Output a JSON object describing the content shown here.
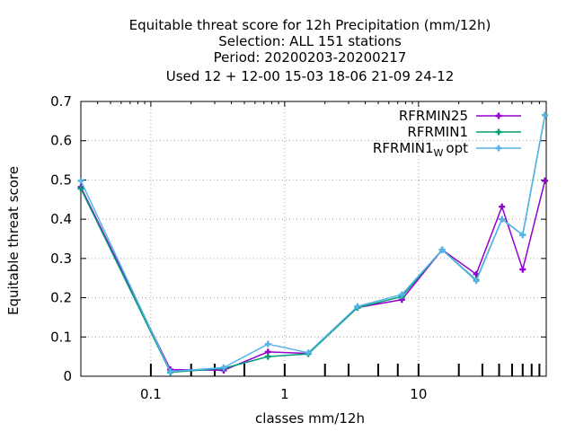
{
  "chart_data": {
    "type": "line",
    "title_lines": [
      "Equitable threat score  for 12h Precipitation (mm/12h)",
      "Selection: ALL    151 stations",
      "Period: 20200203-20200217",
      "Used  12 + 12-00 15-03 18-06 21-09 24-12"
    ],
    "xlabel": "classes mm/12h",
    "ylabel": "Equitable threat score",
    "x_scale": "log",
    "xlim": [
      0.03,
      90
    ],
    "ylim": [
      0,
      0.7
    ],
    "x_ticks": [
      0.1,
      1,
      10
    ],
    "x_tick_labels": [
      "0.1",
      "1",
      "10"
    ],
    "y_ticks": [
      0,
      0.1,
      0.2,
      0.3,
      0.4,
      0.5,
      0.6,
      0.7
    ],
    "y_tick_labels": [
      "0",
      "0.1",
      "0.2",
      "0.3",
      "0.4",
      "0.5",
      "0.6",
      "0.7"
    ],
    "category_marks": [
      0.1,
      0.2,
      0.3,
      0.5,
      1,
      2,
      3,
      5,
      7,
      10,
      20,
      30,
      40,
      50,
      60,
      70,
      80
    ],
    "grid": true,
    "legend_position": "top-right",
    "x": [
      0.03,
      0.14,
      0.35,
      0.75,
      1.5,
      3.5,
      7.5,
      15,
      27,
      42,
      60,
      88
    ],
    "series": [
      {
        "name": "RFRMIN25",
        "color": "#9400d3",
        "values": [
          0.482,
          0.017,
          0.015,
          0.062,
          0.058,
          0.175,
          0.195,
          0.322,
          0.26,
          0.432,
          0.272,
          0.498
        ]
      },
      {
        "name": "RFRMIN1",
        "color": "#009e73",
        "values": [
          0.478,
          0.01,
          0.02,
          0.05,
          0.057,
          0.175,
          0.203,
          0.322,
          0.245,
          0.4,
          0.36,
          0.665
        ]
      },
      {
        "name_main": "RFRMIN1",
        "name_sub": "W",
        "name_tail": "opt",
        "color": "#56b4e9",
        "values": [
          0.498,
          0.012,
          0.022,
          0.082,
          0.06,
          0.178,
          0.208,
          0.322,
          0.243,
          0.4,
          0.36,
          0.665
        ]
      }
    ]
  }
}
